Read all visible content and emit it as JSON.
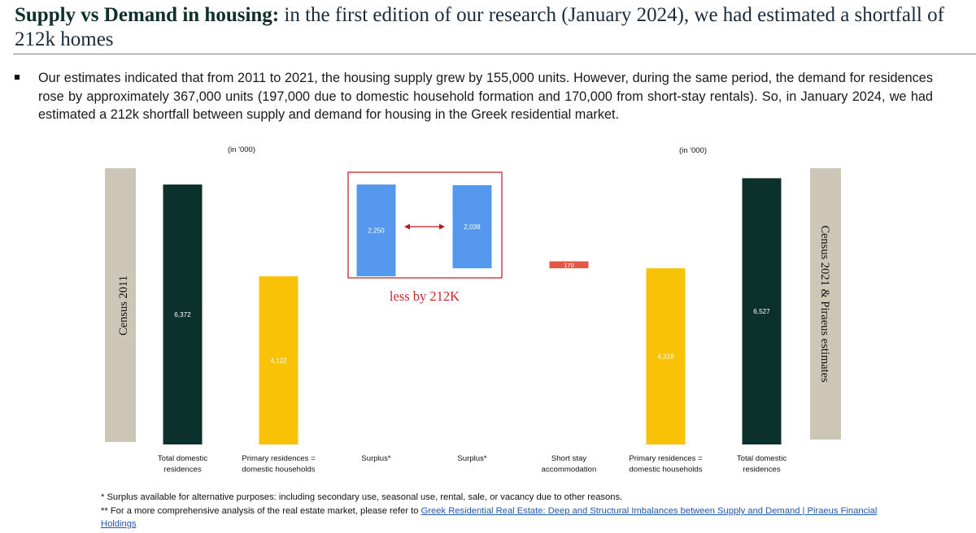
{
  "header": {
    "title_bold": "Supply vs Demand in housing:",
    "title_rest": " in the first edition of our research (January 2024), we had estimated a shortfall of 212k homes"
  },
  "body": {
    "paragraph": "Our estimates indicated that from 2011 to 2021, the housing supply grew by 155,000 units. However, during the same period, the demand for residences rose by approximately 367,000 units (197,000 due to domestic household formation and 170,000 from short-stay rentals). So, in January 2024, we had estimated a 212k shortfall between supply and demand for housing in the Greek residential market."
  },
  "chart_data": {
    "type": "bar",
    "unit_left": "(in '000)",
    "unit_right": "(in '000)",
    "left_side_label": "Census 2011",
    "right_side_label": "Census 2021 & Piraeus estimates",
    "comparison_note": "less by 212K",
    "categories": [
      "Total domestic residences",
      "Primary residences = domestic households",
      "Surplus*",
      "Surplus*",
      "Short stay accommodation",
      "Primary residences = domestic households",
      "Total domestic residences"
    ],
    "values": [
      6372,
      4122,
      2250,
      2038,
      170,
      4319,
      6527
    ],
    "value_labels": [
      "6,372",
      "4,122",
      "2,250",
      "2,038",
      "170",
      "4,319",
      "6,527"
    ],
    "colors": [
      "#0c302b",
      "#f9c206",
      "#5598ee",
      "#5598ee",
      "#e25846",
      "#f9c206",
      "#0c302b"
    ],
    "surplus_base": [
      4122,
      4319
    ],
    "short_stay_base": 4319,
    "ylim": [
      0,
      7000
    ],
    "grid": false,
    "accent_colors": {
      "census_band": "#cdc6b6",
      "highlight_box": "#c62a2a"
    }
  },
  "footnotes": {
    "note1": "* Surplus available for alternative purposes: including secondary use, seasonal use, rental, sale, or vacancy due to other reasons.",
    "note2_prefix": "** For a more comprehensive analysis of the real estate market, please refer to ",
    "note2_link": "Greek Residential Real Estate: Deep and Structural Imbalances between Supply and Demand | Piraeus Financial Holdings"
  }
}
